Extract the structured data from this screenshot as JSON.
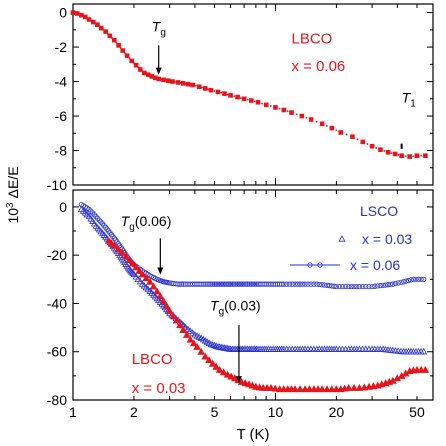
{
  "chart_data": [
    {
      "type": "scatter",
      "panel": "top",
      "x_scale": "log",
      "xlim": [
        1,
        60
      ],
      "ylim": [
        -10,
        0.5
      ],
      "yticks": [
        0,
        -2,
        -4,
        -6,
        -8,
        -10
      ],
      "ytick_labels": [
        "0",
        "-2",
        "-4",
        "-6",
        "-8",
        "-10"
      ],
      "series": [
        {
          "color": "#e8141c",
          "marker": "square",
          "x": [
            1.0,
            1.05,
            1.1,
            1.15,
            1.2,
            1.26,
            1.32,
            1.38,
            1.45,
            1.52,
            1.6,
            1.68,
            1.76,
            1.85,
            1.95,
            2.05,
            2.15,
            2.25,
            2.35,
            2.45,
            2.55,
            2.65,
            2.8,
            2.95,
            3.1,
            3.3,
            3.5,
            3.7,
            3.9,
            4.2,
            4.5,
            4.8,
            5.2,
            5.6,
            6.0,
            6.5,
            7.0,
            7.6,
            8.2,
            9.0,
            10.0,
            11.0,
            12.0,
            13.5,
            15.0,
            17.0,
            19.0,
            21.0,
            24.0,
            27.0,
            30.0,
            33.0,
            36.0,
            39.0,
            42.0,
            46.0,
            50.0,
            55.0
          ],
          "y": [
            0.0,
            -0.05,
            -0.15,
            -0.25,
            -0.4,
            -0.55,
            -0.7,
            -0.9,
            -1.1,
            -1.35,
            -1.6,
            -1.9,
            -2.2,
            -2.5,
            -2.8,
            -3.05,
            -3.3,
            -3.5,
            -3.6,
            -3.7,
            -3.78,
            -3.85,
            -3.9,
            -3.95,
            -4.0,
            -4.05,
            -4.1,
            -4.15,
            -4.2,
            -4.3,
            -4.4,
            -4.5,
            -4.6,
            -4.7,
            -4.8,
            -4.9,
            -5.0,
            -5.1,
            -5.2,
            -5.35,
            -5.5,
            -5.65,
            -5.8,
            -6.0,
            -6.2,
            -6.45,
            -6.7,
            -6.95,
            -7.2,
            -7.5,
            -7.75,
            -7.95,
            -8.1,
            -8.2,
            -8.3,
            -8.35,
            -8.3,
            -8.3
          ]
        }
      ],
      "annotations": [
        {
          "text": "LBCO",
          "x": 12,
          "y": -1.8
        },
        {
          "text": "x = 0.06",
          "x": 12,
          "y": -3.4
        },
        {
          "text_main": "T",
          "text_sub": "g",
          "x": 2.45,
          "y": -1.1,
          "arrow_to": [
            2.65,
            -3.6
          ]
        },
        {
          "text_main": "T",
          "text_sub": "1",
          "x": 42,
          "y": -5.2,
          "arrow_to": [
            42,
            -8.0
          ]
        }
      ]
    },
    {
      "type": "scatter",
      "panel": "bottom",
      "x_scale": "log",
      "xlim": [
        1,
        60
      ],
      "ylim": [
        -80,
        7
      ],
      "xticks": [
        1,
        2,
        5,
        10,
        20,
        50
      ],
      "xtick_labels": [
        "1",
        "2",
        "5",
        "10",
        "20",
        "50"
      ],
      "yticks": [
        0,
        -20,
        -40,
        -60,
        -80
      ],
      "ytick_labels": [
        "0",
        "-20",
        "-40",
        "-60",
        "-80"
      ],
      "xlabel": "T (K)",
      "series": [
        {
          "color": "#2a33c8",
          "marker": "triangle-open",
          "x": [
            1.1,
            1.2,
            1.3,
            1.4,
            1.5,
            1.6,
            1.7,
            1.8,
            1.9,
            2.0,
            2.2,
            2.4,
            2.6,
            2.8,
            3.0,
            3.3,
            3.6,
            4.0,
            4.4,
            4.8,
            5.2,
            5.6,
            6.0,
            6.5,
            7.0,
            7.6,
            8.2,
            9.0,
            10.0,
            11.0,
            12.5,
            14.0,
            16.0,
            18.0,
            20.0,
            23.0,
            26.0,
            30.0,
            34.0,
            38.0,
            43.0,
            48.0,
            54.0
          ],
          "y": [
            -1,
            -4,
            -8,
            -11,
            -14,
            -17,
            -20,
            -23,
            -26,
            -28,
            -32,
            -35,
            -38,
            -41,
            -44,
            -47,
            -50,
            -53,
            -55,
            -57,
            -58,
            -58.5,
            -59,
            -59,
            -59,
            -59,
            -59,
            -59,
            -59,
            -59,
            -59,
            -59,
            -59,
            -59,
            -59,
            -59,
            -59,
            -59,
            -59,
            -59.5,
            -60,
            -60,
            -60
          ]
        },
        {
          "color": "#2a33c8",
          "marker": "circle-open",
          "x": [
            1.1,
            1.2,
            1.3,
            1.4,
            1.5,
            1.6,
            1.7,
            1.8,
            1.9,
            2.0,
            2.2,
            2.4,
            2.6,
            2.8,
            3.0,
            3.3,
            3.6,
            4.0,
            4.4,
            4.8,
            5.2,
            5.6,
            6.0,
            6.5,
            7.0,
            7.6,
            8.2,
            9.0,
            10.0,
            11.0,
            12.5,
            14.0,
            16.0,
            18.0,
            20.0,
            23.0,
            26.0,
            30.0,
            34.0,
            38.0,
            43.0,
            48.0,
            54.0
          ],
          "y": [
            1,
            -1,
            -4,
            -7,
            -10,
            -13,
            -16,
            -19,
            -22,
            -24,
            -26.5,
            -28.5,
            -30,
            -31,
            -31.5,
            -32,
            -32,
            -32,
            -32,
            -32,
            -32,
            -32,
            -32,
            -32,
            -32,
            -32,
            -32,
            -32,
            -32,
            -32,
            -32,
            -32,
            -32,
            -32.5,
            -33,
            -33,
            -33,
            -33,
            -32.5,
            -32,
            -31,
            -30,
            -30
          ]
        },
        {
          "color": "#e8141c",
          "marker": "triangle-filled",
          "x": [
            1.5,
            1.6,
            1.75,
            1.9,
            2.05,
            2.2,
            2.4,
            2.6,
            2.8,
            3.0,
            3.25,
            3.5,
            3.8,
            4.1,
            4.5,
            4.9,
            5.3,
            5.8,
            6.3,
            6.8,
            7.4,
            8.0,
            8.7,
            9.5,
            10.5,
            11.5,
            12.5,
            14.0,
            15.5,
            17.0,
            19.0,
            21.0,
            23.0,
            26.0,
            29.0,
            32.0,
            35.0,
            38.0,
            42.0,
            46.0,
            50.0,
            55.0
          ],
          "y": [
            -14,
            -16,
            -19,
            -22,
            -25,
            -28,
            -31,
            -35,
            -39,
            -43,
            -47,
            -51,
            -55,
            -58,
            -62,
            -65,
            -67.5,
            -69.5,
            -71,
            -72.5,
            -73.5,
            -74.5,
            -75,
            -75,
            -75.5,
            -75.5,
            -75.5,
            -75.5,
            -75.5,
            -75.5,
            -75.5,
            -75.5,
            -75,
            -75,
            -74.5,
            -74,
            -73,
            -72,
            -70,
            -68,
            -67.5,
            -67.5
          ]
        }
      ],
      "legend": [
        {
          "label": "LSCO",
          "marker": "none"
        },
        {
          "label": "x = 0.03",
          "marker": "triangle-open"
        },
        {
          "label": "x = 0.06",
          "marker": "circle-open-line"
        }
      ],
      "annotations": [
        {
          "text": "LBCO",
          "x": 1.95,
          "y": -65
        },
        {
          "text": "x = 0.03",
          "x": 1.95,
          "y": -77
        },
        {
          "text_main": "T",
          "text_sub": "g",
          "text_rest": "(0.06)",
          "x": 1.72,
          "y": -8,
          "arrow_to": [
            2.7,
            -28
          ]
        },
        {
          "text_main": "T",
          "text_sub": "g",
          "text_rest": "(0.03)",
          "x": 4.75,
          "y": -43,
          "arrow_to": [
            6.6,
            -73
          ]
        }
      ]
    }
  ],
  "shared_ylabel": {
    "prefix": "10",
    "exponent": "3",
    "rest": "ΔE/E"
  }
}
